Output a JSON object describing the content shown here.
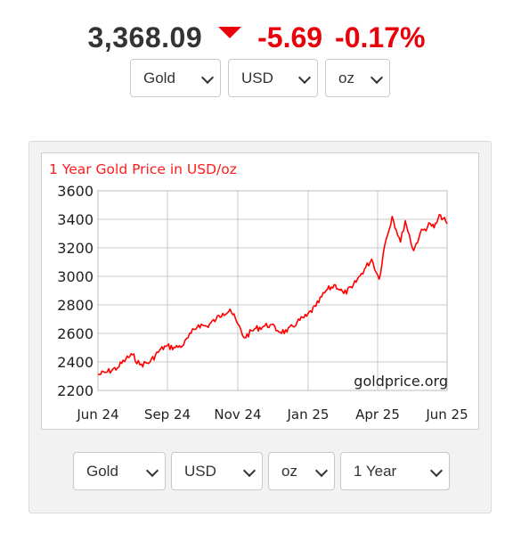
{
  "quote": {
    "price": "3,368.09",
    "change": "-5.69",
    "change_pct": "-0.17%",
    "direction": "down",
    "down_color": "#e8000b"
  },
  "top_selectors": {
    "metal": "Gold",
    "currency": "USD",
    "unit": "oz"
  },
  "bottom_selectors": {
    "metal": "Gold",
    "currency": "USD",
    "unit": "oz",
    "period": "1 Year"
  },
  "chart_data": {
    "type": "line",
    "title": "1 Year Gold Price in USD/oz",
    "watermark": "goldprice.org",
    "line_color": "#ff0000",
    "ylim": [
      2200,
      3600
    ],
    "yticks": [
      2200,
      2400,
      2600,
      2800,
      3000,
      3200,
      3400,
      3600
    ],
    "xticks": [
      "Jun 24",
      "Sep 24",
      "Nov 24",
      "Jan 25",
      "Apr 25",
      "Jun 25"
    ],
    "grid": true,
    "series": [
      {
        "x": [
          "2024-06-10",
          "2024-06-20",
          "2024-07-01",
          "2024-07-10",
          "2024-07-17",
          "2024-07-25",
          "2024-08-05",
          "2024-08-15",
          "2024-08-22",
          "2024-09-01",
          "2024-09-10",
          "2024-09-18",
          "2024-09-26",
          "2024-10-05",
          "2024-10-15",
          "2024-10-22",
          "2024-10-30",
          "2024-11-06",
          "2024-11-14",
          "2024-11-25",
          "2024-12-05",
          "2024-12-12",
          "2024-12-20",
          "2024-12-30",
          "2025-01-10",
          "2025-01-20",
          "2025-01-30",
          "2025-02-10",
          "2025-02-20",
          "2025-03-01",
          "2025-03-10",
          "2025-03-20",
          "2025-03-31",
          "2025-04-08",
          "2025-04-14",
          "2025-04-22",
          "2025-05-01",
          "2025-05-06",
          "2025-05-15",
          "2025-05-22",
          "2025-06-02",
          "2025-06-06",
          "2025-06-13",
          "2025-06-20"
        ],
        "y": [
          2310,
          2330,
          2360,
          2420,
          2450,
          2380,
          2400,
          2480,
          2510,
          2500,
          2520,
          2600,
          2660,
          2650,
          2700,
          2740,
          2770,
          2680,
          2570,
          2630,
          2650,
          2660,
          2620,
          2610,
          2680,
          2720,
          2790,
          2900,
          2940,
          2880,
          2920,
          3020,
          3120,
          2980,
          3220,
          3420,
          3240,
          3390,
          3180,
          3300,
          3370,
          3340,
          3430,
          3368
        ]
      }
    ]
  }
}
